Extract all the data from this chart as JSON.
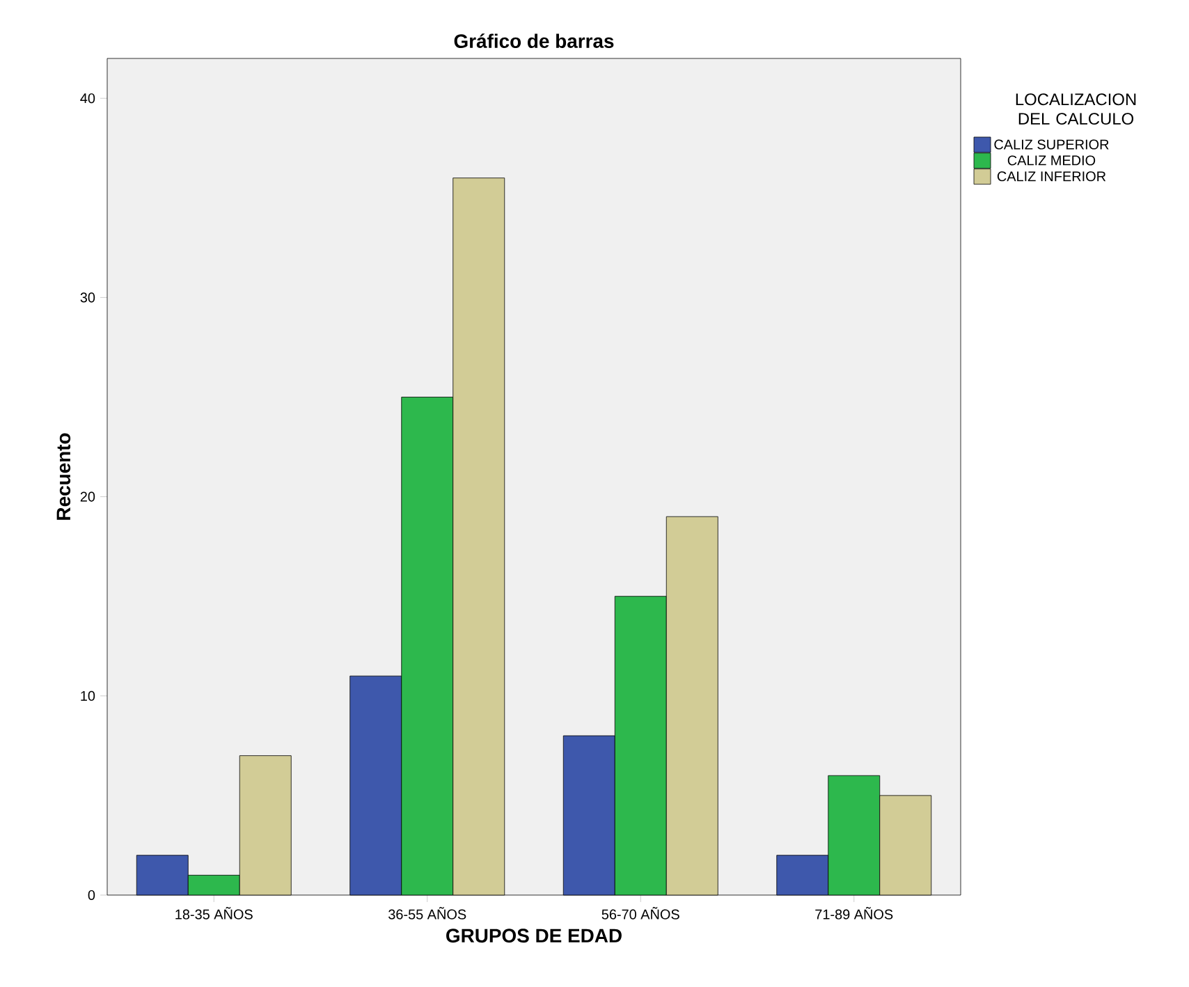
{
  "chart_data": {
    "type": "bar",
    "title": "Gráfico de barras",
    "xlabel": "GRUPOS DE EDAD",
    "ylabel": "Recuento",
    "legend_title": "LOCALIZACION DEL CALCULO",
    "categories": [
      "18-35 AÑOS",
      "36-55 AÑOS",
      "56-70 AÑOS",
      "71-89 AÑOS"
    ],
    "series": [
      {
        "name": "CALIZ SUPERIOR",
        "color": "#3e58ac",
        "values": [
          2,
          11,
          8,
          2
        ]
      },
      {
        "name": "CALIZ MEDIO",
        "color": "#2db84d",
        "values": [
          1,
          25,
          15,
          6
        ]
      },
      {
        "name": "CALIZ INFERIOR",
        "color": "#d2cc96",
        "values": [
          7,
          36,
          19,
          5
        ]
      }
    ],
    "ylim": [
      0,
      42
    ],
    "yticks": [
      0,
      10,
      20,
      30,
      40
    ],
    "grid": false,
    "legend": "right"
  }
}
